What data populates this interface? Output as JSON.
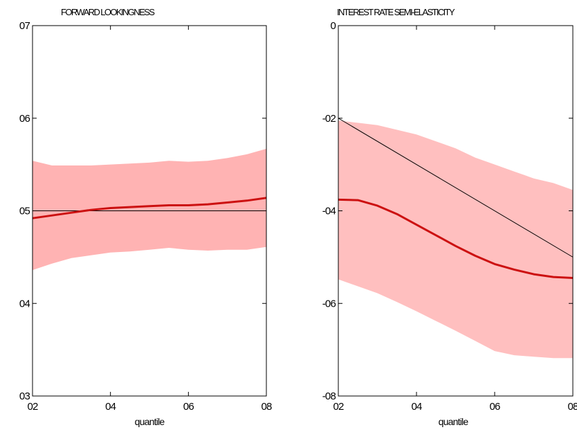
{
  "chart_data": [
    {
      "type": "line",
      "title": "FORWARD LOOKINGNESS",
      "xlabel": "",
      "ylabel": "",
      "xlim": [
        0.2,
        0.8
      ],
      "ylim": [
        0.3,
        0.7
      ],
      "xticks": [
        0.2,
        0.4,
        0.6,
        0.8
      ],
      "yticks": [
        0.3,
        0.4,
        0.5,
        0.6,
        0.7
      ],
      "xtick_labels": [
        "02",
        "04",
        "06",
        "08"
      ],
      "ytick_labels": [
        "03",
        "04",
        "05",
        "06",
        "07"
      ],
      "grid": false,
      "colors": {
        "median": "#cc1111",
        "band": "#ffb3b3",
        "reference": "#000000"
      },
      "x": [
        0.2,
        0.25,
        0.3,
        0.35,
        0.4,
        0.45,
        0.5,
        0.55,
        0.6,
        0.65,
        0.7,
        0.75,
        0.8
      ],
      "series": [
        {
          "role": "median",
          "values": [
            0.492,
            0.495,
            0.498,
            0.501,
            0.503,
            0.504,
            0.505,
            0.506,
            0.506,
            0.507,
            0.509,
            0.511,
            0.514
          ]
        },
        {
          "role": "band-upper",
          "values": [
            0.554,
            0.549,
            0.549,
            0.549,
            0.55,
            0.551,
            0.552,
            0.554,
            0.553,
            0.554,
            0.557,
            0.561,
            0.567
          ]
        },
        {
          "role": "band-lower",
          "values": [
            0.436,
            0.443,
            0.449,
            0.452,
            0.455,
            0.456,
            0.458,
            0.46,
            0.458,
            0.457,
            0.458,
            0.458,
            0.461
          ]
        }
      ],
      "reference_line": {
        "x": [
          0.2,
          0.8
        ],
        "y": [
          0.5,
          0.5
        ]
      }
    },
    {
      "type": "line",
      "title": "INTEREST RATE SEMI-ELASTICITY",
      "xlabel": "quantile",
      "ylabel": "",
      "xlim": [
        0.2,
        0.8
      ],
      "ylim": [
        -0.8,
        0
      ],
      "xticks": [
        0.2,
        0.4,
        0.6,
        0.8
      ],
      "yticks": [
        -0.8,
        -0.6,
        -0.4,
        -0.2,
        0
      ],
      "xtick_labels": [
        "02",
        "04",
        "06",
        "08"
      ],
      "ytick_labels": [
        "-08",
        "-06",
        "-04",
        "-02",
        "0"
      ],
      "grid": false,
      "colors": {
        "median": "#cc1111",
        "band": "#ffbfbf",
        "reference": "#000000"
      },
      "x": [
        0.2,
        0.25,
        0.3,
        0.35,
        0.4,
        0.45,
        0.5,
        0.55,
        0.6,
        0.65,
        0.7,
        0.75,
        0.8
      ],
      "series": [
        {
          "role": "median",
          "values": [
            -0.376,
            -0.377,
            -0.389,
            -0.407,
            -0.43,
            -0.453,
            -0.476,
            -0.497,
            -0.515,
            -0.527,
            -0.537,
            -0.543,
            -0.545
          ]
        },
        {
          "role": "band-upper",
          "values": [
            -0.205,
            -0.21,
            -0.215,
            -0.225,
            -0.235,
            -0.25,
            -0.265,
            -0.285,
            -0.3,
            -0.315,
            -0.33,
            -0.34,
            -0.355
          ]
        },
        {
          "role": "band-lower",
          "values": [
            -0.548,
            -0.563,
            -0.578,
            -0.597,
            -0.617,
            -0.638,
            -0.659,
            -0.681,
            -0.703,
            -0.712,
            -0.715,
            -0.718,
            -0.718
          ]
        }
      ],
      "reference_line": {
        "x": [
          0.2,
          0.8
        ],
        "y": [
          -0.2,
          -0.5
        ]
      }
    }
  ],
  "xlabel_bottom": "quantile"
}
